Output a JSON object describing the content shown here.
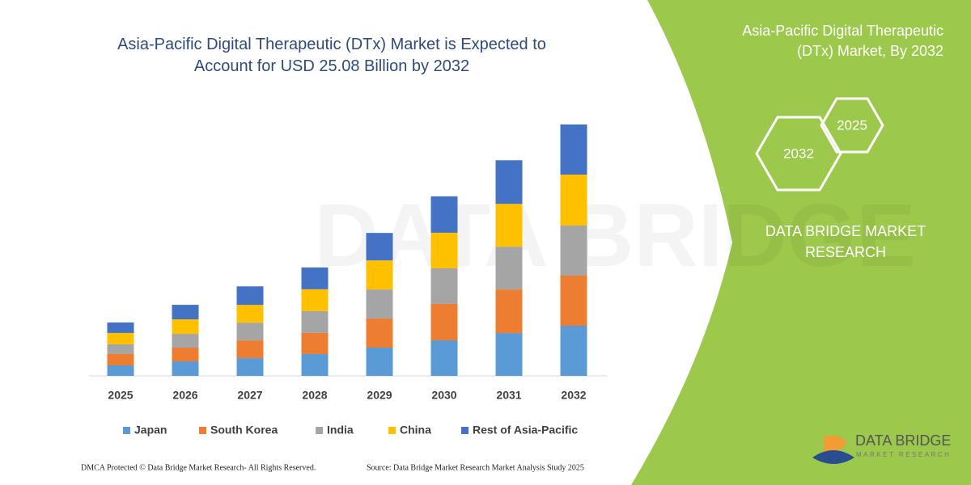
{
  "chart_data": {
    "type": "stacked_bar",
    "title": "Asia-Pacific Digital Therapeutic (DTx) Market is Expected to Account for USD 25.08 Billion by 2032",
    "categories": [
      "2025",
      "2026",
      "2027",
      "2028",
      "2029",
      "2030",
      "2031",
      "2032"
    ],
    "series": [
      {
        "name": "Japan",
        "color": "#5b9bd5",
        "values": [
          1.05,
          1.45,
          1.77,
          2.18,
          2.82,
          3.55,
          4.27,
          5.0
        ]
      },
      {
        "name": "South Korea",
        "color": "#ed7d31",
        "values": [
          1.13,
          1.37,
          1.77,
          2.1,
          2.9,
          3.63,
          4.35,
          5.0
        ]
      },
      {
        "name": "India",
        "color": "#a5a5a5",
        "values": [
          0.97,
          1.37,
          1.77,
          2.18,
          2.9,
          3.55,
          4.27,
          5.0
        ]
      },
      {
        "name": "China",
        "color": "#ffc000",
        "values": [
          1.13,
          1.45,
          1.77,
          2.18,
          2.9,
          3.55,
          4.27,
          5.08
        ]
      },
      {
        "name": "Rest of Asia-Pacific",
        "color": "#4472c4",
        "values": [
          1.05,
          1.45,
          1.85,
          2.18,
          2.74,
          3.63,
          4.35,
          5.0
        ]
      }
    ]
  },
  "panel": {
    "title": "Asia-Pacific Digital Therapeutic (DTx) Market, By 2032",
    "hexagons": [
      "2032",
      "2025"
    ],
    "brand": "DATA BRIDGE MARKET RESEARCH"
  },
  "footer": {
    "left": "DMCA Protected © Data Bridge Market Research-  All Rights Reserved.",
    "right": "Source: Data Bridge Market Research  Market Analysis Study 2025"
  },
  "logo": {
    "name": "DATA BRIDGE",
    "tagline": "MARKET RESEARCH"
  }
}
